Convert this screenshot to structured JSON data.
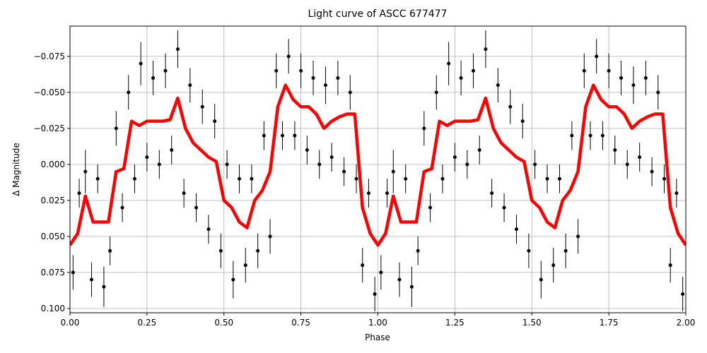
{
  "chart_data": {
    "type": "scatter",
    "title": "Light curve of ASCC 677477",
    "xlabel": "Phase",
    "ylabel": "Δ Magnitude",
    "color": "#000000",
    "grid": true,
    "xlim": [
      0,
      2
    ],
    "xticks": [
      {
        "value": 0,
        "label": "0.00"
      },
      0.25,
      {
        "value": 0.5,
        "label": "0.50"
      },
      0.75,
      {
        "value": 1,
        "label": "1.00"
      },
      1.25,
      {
        "value": 1.5,
        "label": "1.50"
      },
      1.75,
      {
        "value": 2,
        "label": "2.00"
      }
    ],
    "ylim": [
      0.103,
      -0.096
    ],
    "yticks": [
      {
        "value": 0.1,
        "label": "0.100"
      },
      0.075,
      {
        "value": 0.05,
        "label": "0.050"
      },
      0.025,
      {
        "value": 0,
        "label": "0.000"
      },
      {
        "value": -0.025,
        "label": "−0.025"
      },
      {
        "value": -0.05,
        "label": "−0.050"
      },
      {
        "value": -0.075,
        "label": "−0.075"
      }
    ],
    "x": [
      0.01,
      0.03,
      0.05,
      0.07,
      0.09,
      0.11,
      0.13,
      0.15,
      0.17,
      0.19,
      0.21,
      0.23,
      0.25,
      0.27,
      0.29,
      0.31,
      0.33,
      0.35,
      0.37,
      0.39,
      0.41,
      0.43,
      0.45,
      0.47,
      0.49,
      0.51,
      0.53,
      0.55,
      0.57,
      0.59,
      0.61,
      0.63,
      0.65,
      0.67,
      0.69,
      0.71,
      0.73,
      0.75,
      0.77,
      0.79,
      0.81,
      0.83,
      0.85,
      0.87,
      0.89,
      0.91,
      0.93,
      0.95,
      0.97,
      0.99,
      1.01,
      1.03,
      1.05,
      1.07,
      1.09,
      1.11,
      1.13,
      1.15,
      1.17,
      1.19,
      1.21,
      1.23,
      1.25,
      1.27,
      1.29,
      1.31,
      1.33,
      1.35,
      1.37,
      1.39,
      1.41,
      1.43,
      1.45,
      1.47,
      1.49,
      1.51,
      1.53,
      1.55,
      1.57,
      1.59,
      1.61,
      1.63,
      1.65,
      1.67,
      1.69,
      1.71,
      1.73,
      1.75,
      1.77,
      1.79,
      1.81,
      1.83,
      1.85,
      1.87,
      1.89,
      1.91,
      1.93,
      1.95,
      1.97,
      1.99
    ],
    "values": [
      0.075,
      0.02,
      0.005,
      0.08,
      0.01,
      0.085,
      0.06,
      -0.025,
      0.03,
      -0.05,
      0.01,
      -0.07,
      -0.005,
      -0.06,
      0.0,
      -0.065,
      -0.01,
      -0.08,
      0.02,
      -0.055,
      0.03,
      -0.04,
      0.045,
      -0.03,
      0.06,
      0.0,
      0.08,
      0.01,
      0.07,
      0.01,
      0.06,
      -0.02,
      0.05,
      -0.065,
      -0.02,
      -0.075,
      -0.02,
      -0.065,
      -0.01,
      -0.06,
      0.0,
      -0.055,
      -0.005,
      -0.06,
      0.005,
      -0.05,
      0.01,
      0.07,
      0.02,
      0.09,
      0.075,
      0.02,
      0.005,
      0.08,
      0.01,
      0.085,
      0.06,
      -0.025,
      0.03,
      -0.05,
      0.01,
      -0.07,
      -0.005,
      -0.06,
      0.0,
      -0.065,
      -0.01,
      -0.08,
      0.02,
      -0.055,
      0.03,
      -0.04,
      0.045,
      -0.03,
      0.06,
      0.0,
      0.08,
      0.01,
      0.07,
      0.01,
      0.06,
      -0.02,
      0.05,
      -0.065,
      -0.02,
      -0.075,
      -0.02,
      -0.065,
      -0.01,
      -0.06,
      0.0,
      -0.055,
      -0.005,
      -0.06,
      0.005,
      -0.05,
      0.01,
      0.07,
      0.02,
      0.09
    ],
    "errors": [
      0.012,
      0.01,
      0.015,
      0.012,
      0.01,
      0.014,
      0.01,
      0.012,
      0.01,
      0.012,
      0.01,
      0.015,
      0.01,
      0.012,
      0.01,
      0.012,
      0.01,
      0.013,
      0.01,
      0.012,
      0.01,
      0.012,
      0.01,
      0.012,
      0.012,
      0.01,
      0.013,
      0.01,
      0.012,
      0.01,
      0.012,
      0.01,
      0.012,
      0.012,
      0.01,
      0.012,
      0.01,
      0.012,
      0.01,
      0.012,
      0.01,
      0.013,
      0.01,
      0.012,
      0.01,
      0.012,
      0.01,
      0.012,
      0.01,
      0.012,
      0.012,
      0.01,
      0.015,
      0.012,
      0.01,
      0.014,
      0.01,
      0.012,
      0.01,
      0.012,
      0.01,
      0.015,
      0.01,
      0.012,
      0.01,
      0.012,
      0.01,
      0.013,
      0.01,
      0.012,
      0.01,
      0.012,
      0.01,
      0.012,
      0.012,
      0.01,
      0.013,
      0.01,
      0.012,
      0.01,
      0.012,
      0.01,
      0.012,
      0.012,
      0.01,
      0.012,
      0.01,
      0.012,
      0.01,
      0.012,
      0.01,
      0.013,
      0.01,
      0.012,
      0.01,
      0.012,
      0.01,
      0.012,
      0.01,
      0.012
    ],
    "line": {
      "type": "line",
      "color": "#ff0000",
      "x": [
        0,
        0.025,
        0.05,
        0.075,
        0.1,
        0.125,
        0.15,
        0.175,
        0.2,
        0.225,
        0.25,
        0.275,
        0.3,
        0.325,
        0.35,
        0.375,
        0.4,
        0.425,
        0.45,
        0.475,
        0.5,
        0.525,
        0.55,
        0.575,
        0.6,
        0.625,
        0.65,
        0.675,
        0.7,
        0.725,
        0.75,
        0.775,
        0.8,
        0.825,
        0.85,
        0.875,
        0.9,
        0.925,
        0.95,
        0.975,
        1,
        1.025,
        1.05,
        1.075,
        1.1,
        1.125,
        1.15,
        1.175,
        1.2,
        1.225,
        1.25,
        1.275,
        1.3,
        1.325,
        1.35,
        1.375,
        1.4,
        1.425,
        1.45,
        1.475,
        1.5,
        1.525,
        1.55,
        1.575,
        1.6,
        1.625,
        1.65,
        1.675,
        1.7,
        1.725,
        1.75,
        1.775,
        1.8,
        1.825,
        1.85,
        1.875,
        1.9,
        1.925,
        1.95,
        1.975,
        2
      ],
      "values": [
        0.056,
        0.048,
        0.022,
        0.04,
        0.04,
        0.04,
        0.005,
        0.003,
        -0.03,
        -0.027,
        -0.03,
        -0.03,
        -0.03,
        -0.031,
        -0.046,
        -0.025,
        -0.015,
        -0.01,
        -0.005,
        -0.002,
        0.025,
        0.03,
        0.04,
        0.044,
        0.025,
        0.018,
        0.005,
        -0.04,
        -0.055,
        -0.045,
        -0.04,
        -0.04,
        -0.035,
        -0.025,
        -0.03,
        -0.033,
        -0.035,
        -0.035,
        0.03,
        0.048,
        0.056,
        0.048,
        0.022,
        0.04,
        0.04,
        0.04,
        0.005,
        0.003,
        -0.03,
        -0.027,
        -0.03,
        -0.03,
        -0.03,
        -0.031,
        -0.046,
        -0.025,
        -0.015,
        -0.01,
        -0.005,
        -0.002,
        0.025,
        0.03,
        0.04,
        0.044,
        0.025,
        0.018,
        0.005,
        -0.04,
        -0.055,
        -0.045,
        -0.04,
        -0.04,
        -0.035,
        -0.025,
        -0.03,
        -0.033,
        -0.035,
        -0.035,
        0.03,
        0.048,
        0.056
      ]
    }
  }
}
